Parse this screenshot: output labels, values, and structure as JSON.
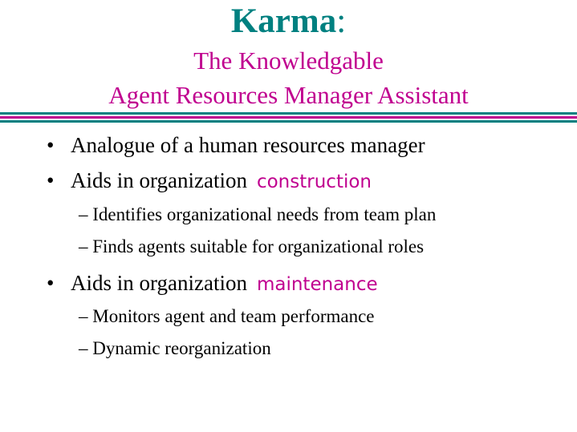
{
  "colors": {
    "title": "#008080",
    "subtitle": "#c0008f",
    "accent": "#c0008f",
    "divider_teal": "#008080",
    "divider_magenta": "#c0008f"
  },
  "title": {
    "brand": "Karma",
    "colon": ":",
    "subtitle_line1": "The Knowledgable",
    "subtitle_line2": "Agent Resources Manager Assistant"
  },
  "bullets": [
    {
      "marker": "•",
      "text": "Analogue of a human resources manager"
    },
    {
      "marker": "•",
      "text": "Aids in organization",
      "accent": "construction",
      "subitems": [
        "– Identifies organizational needs from team plan",
        "– Finds agents suitable for organizational roles"
      ]
    },
    {
      "marker": "•",
      "text": "Aids in organization",
      "accent": "maintenance",
      "subitems": [
        "– Monitors agent and team performance",
        "– Dynamic reorganization"
      ]
    }
  ]
}
